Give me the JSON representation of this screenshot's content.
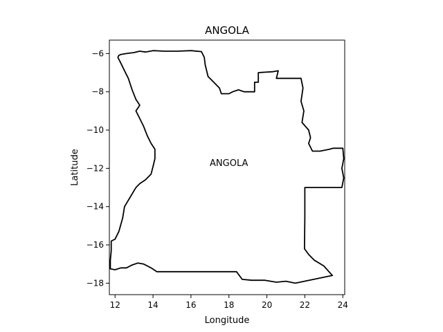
{
  "title": "ANGOLA",
  "xlabel": "Longitude",
  "ylabel": "Latitude",
  "region_label": "ANGOLA",
  "xlim": [
    11.7,
    24.1
  ],
  "ylim": [
    -18.6,
    -5.3
  ],
  "x_ticks": [
    12,
    14,
    16,
    18,
    20,
    22,
    24
  ],
  "y_ticks": [
    -6,
    -8,
    -10,
    -12,
    -14,
    -16,
    -18
  ],
  "colors": {
    "border": "#000000",
    "background": "#ffffff"
  },
  "chart_data": {
    "type": "map",
    "title": "ANGOLA",
    "xlabel": "Longitude",
    "ylabel": "Latitude",
    "xlim": [
      11.7,
      24.1
    ],
    "ylim": [
      -18.6,
      -5.3
    ],
    "grid": false,
    "annotations": [
      {
        "text": "ANGOLA",
        "lon": 18.0,
        "lat": -11.7
      }
    ],
    "outline": [
      [
        12.2,
        -6.1
      ],
      [
        12.3,
        -6.05
      ],
      [
        12.6,
        -6.0
      ],
      [
        13.0,
        -5.95
      ],
      [
        13.3,
        -5.88
      ],
      [
        13.6,
        -5.92
      ],
      [
        14.0,
        -5.85
      ],
      [
        14.6,
        -5.88
      ],
      [
        15.3,
        -5.88
      ],
      [
        16.0,
        -5.85
      ],
      [
        16.55,
        -5.9
      ],
      [
        16.7,
        -6.2
      ],
      [
        16.75,
        -6.6
      ],
      [
        16.9,
        -7.2
      ],
      [
        17.2,
        -7.5
      ],
      [
        17.5,
        -7.8
      ],
      [
        17.6,
        -8.1
      ],
      [
        18.0,
        -8.1
      ],
      [
        18.2,
        -8.0
      ],
      [
        18.5,
        -7.9
      ],
      [
        18.8,
        -8.0
      ],
      [
        19.35,
        -8.0
      ],
      [
        19.35,
        -7.5
      ],
      [
        19.55,
        -7.5
      ],
      [
        19.55,
        -7.0
      ],
      [
        20.3,
        -6.95
      ],
      [
        20.6,
        -6.9
      ],
      [
        20.5,
        -7.3
      ],
      [
        21.8,
        -7.3
      ],
      [
        21.9,
        -7.8
      ],
      [
        21.8,
        -8.5
      ],
      [
        21.95,
        -9.0
      ],
      [
        21.85,
        -9.6
      ],
      [
        22.2,
        -10.0
      ],
      [
        22.3,
        -10.4
      ],
      [
        22.2,
        -10.7
      ],
      [
        22.4,
        -11.1
      ],
      [
        22.5,
        -11.1
      ],
      [
        22.8,
        -11.1
      ],
      [
        23.3,
        -11.0
      ],
      [
        23.5,
        -10.95
      ],
      [
        24.0,
        -10.95
      ],
      [
        24.05,
        -11.5
      ],
      [
        23.95,
        -12.0
      ],
      [
        24.05,
        -12.5
      ],
      [
        23.95,
        -13.0
      ],
      [
        22.0,
        -13.0
      ],
      [
        22.0,
        -14.5
      ],
      [
        21.98,
        -16.2
      ],
      [
        22.2,
        -16.5
      ],
      [
        22.5,
        -16.8
      ],
      [
        23.0,
        -17.1
      ],
      [
        23.45,
        -17.6
      ],
      [
        21.5,
        -18.0
      ],
      [
        21.0,
        -17.9
      ],
      [
        20.5,
        -17.95
      ],
      [
        19.9,
        -17.85
      ],
      [
        19.2,
        -17.85
      ],
      [
        18.7,
        -17.8
      ],
      [
        18.4,
        -17.4
      ],
      [
        16.0,
        -17.4
      ],
      [
        14.2,
        -17.4
      ],
      [
        13.9,
        -17.2
      ],
      [
        13.5,
        -17.0
      ],
      [
        13.2,
        -16.95
      ],
      [
        12.9,
        -17.05
      ],
      [
        12.6,
        -17.2
      ],
      [
        12.3,
        -17.2
      ],
      [
        12.0,
        -17.3
      ],
      [
        11.75,
        -17.25
      ],
      [
        11.75,
        -16.8
      ],
      [
        11.8,
        -16.3
      ],
      [
        11.8,
        -15.8
      ],
      [
        12.0,
        -15.7
      ],
      [
        12.2,
        -15.3
      ],
      [
        12.4,
        -14.6
      ],
      [
        12.5,
        -14.0
      ],
      [
        12.8,
        -13.5
      ],
      [
        13.1,
        -13.0
      ],
      [
        13.3,
        -12.8
      ],
      [
        13.6,
        -12.6
      ],
      [
        13.9,
        -12.3
      ],
      [
        14.0,
        -11.9
      ],
      [
        14.1,
        -11.5
      ],
      [
        14.1,
        -11.0
      ],
      [
        13.9,
        -10.7
      ],
      [
        13.7,
        -10.3
      ],
      [
        13.5,
        -9.8
      ],
      [
        13.3,
        -9.4
      ],
      [
        13.1,
        -9.0
      ],
      [
        13.3,
        -8.7
      ],
      [
        13.1,
        -8.4
      ],
      [
        12.9,
        -7.9
      ],
      [
        12.7,
        -7.3
      ],
      [
        12.5,
        -6.9
      ],
      [
        12.3,
        -6.5
      ],
      [
        12.15,
        -6.2
      ],
      [
        12.2,
        -6.1
      ]
    ]
  }
}
